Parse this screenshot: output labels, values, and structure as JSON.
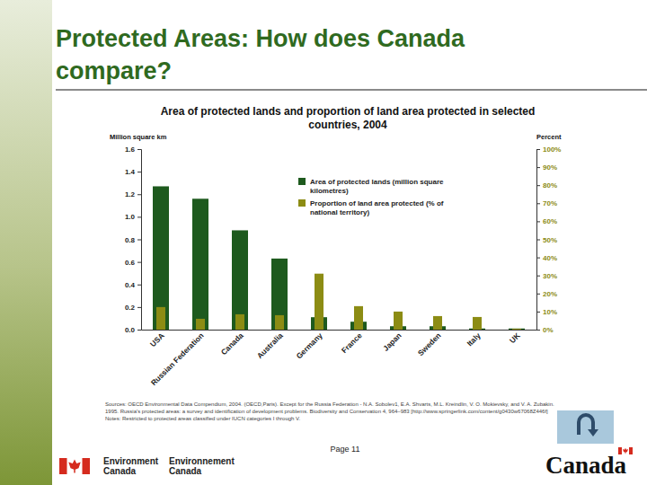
{
  "slide": {
    "title": "Protected Areas: How does Canada compare?",
    "page": "Page 11",
    "department": [
      "Environment Canada",
      "Environnement Canada"
    ],
    "wordmark": "Canada"
  },
  "chart_data": {
    "type": "bar",
    "title": "Area of protected lands and proportion of land area protected in selected countries, 2004",
    "y_label": "Million square km",
    "y2_label": "Percent",
    "categories": [
      "USA",
      "Russian Federation",
      "Canada",
      "Australia",
      "Germany",
      "France",
      "Japan",
      "Sweden",
      "Italy",
      "UK"
    ],
    "series": [
      {
        "name": "Area of protected lands (million square kilometres)",
        "color": "#1e5a1e",
        "values": [
          1.27,
          1.16,
          0.88,
          0.63,
          0.11,
          0.07,
          0.03,
          0.03,
          0.01,
          0.01
        ]
      },
      {
        "name": "Proportion of land area protected (% of national territory)",
        "color": "#8c8c14",
        "axis": "y2",
        "values": [
          12.5,
          6,
          8.5,
          8,
          31,
          13,
          10,
          7.5,
          7,
          0.5
        ]
      }
    ],
    "ylim": [
      0,
      1.6
    ],
    "yticks": [
      {
        "value": 0,
        "label": "0.0"
      },
      0.2,
      0.4,
      0.6,
      0.8,
      {
        "value": 1,
        "label": "1.0"
      },
      1.2,
      1.4,
      1.6
    ],
    "y2lim": [
      0,
      100
    ],
    "y2ticks": [
      {
        "value": 0,
        "label": "0%"
      },
      {
        "value": 10,
        "label": "10%"
      },
      {
        "value": 20,
        "label": "20%"
      },
      {
        "value": 30,
        "label": "30%"
      },
      {
        "value": 40,
        "label": "40%"
      },
      {
        "value": 50,
        "label": "50%"
      },
      {
        "value": 60,
        "label": "60%"
      },
      {
        "value": 70,
        "label": "70%"
      },
      {
        "value": 80,
        "label": "80%"
      },
      {
        "value": 90,
        "label": "90%"
      },
      {
        "value": 100,
        "label": "100%"
      }
    ],
    "sources": "Sources: OECD Environmental Data Compendium, 2004. (OECD,Paris). Except for the Russia Federation - N.A. Sobolev1, E.A. Shvarts, M.L. Kreindlin, V. O. Mokievsky, and V. A. Zubakin. 1995. Russia's protected areas: a survey and identification of development problems. Biodiversity and Conservation 4, 964–983 [http://www.springerlink.com/content/g0430w67068Z446f]",
    "notes": "Notes: Restricted to protected areas classified under IUCN categories I through V."
  }
}
